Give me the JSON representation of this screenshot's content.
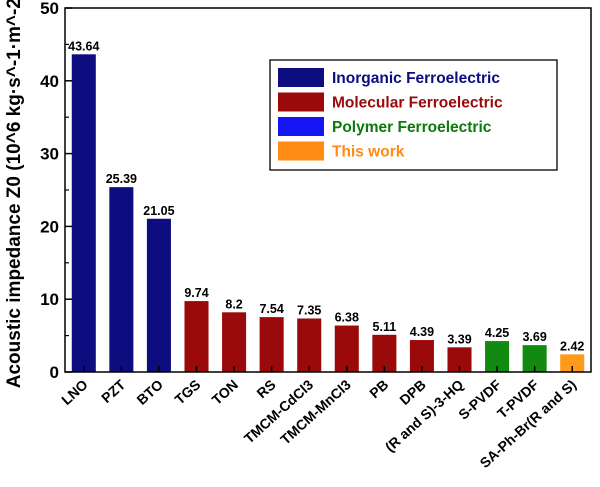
{
  "chart_data": {
    "type": "bar",
    "categories": [
      "LNO",
      "PZT",
      "BTO",
      "TGS",
      "TON",
      "RS",
      "TMCM-CdCl3",
      "TMCM-MnCl3",
      "PB",
      "DPB",
      "(R and S)-3-HQ",
      "S-PVDF",
      "T-PVDF",
      "SA-Ph-Br(R and S)"
    ],
    "values": [
      43.64,
      25.39,
      21.05,
      9.74,
      8.2,
      7.54,
      7.35,
      6.38,
      5.11,
      4.39,
      3.39,
      4.25,
      3.69,
      2.42
    ],
    "value_labels": [
      "43.64",
      "25.39",
      "21.05",
      "9.74",
      "8.2",
      "7.54",
      "7.35",
      "6.38",
      "5.11",
      "4.39",
      "3.39",
      "4.25",
      "3.69",
      "2.42"
    ],
    "groups": [
      "Inorganic Ferroelectric",
      "Inorganic Ferroelectric",
      "Inorganic Ferroelectric",
      "Molecular Ferroelectric",
      "Molecular Ferroelectric",
      "Molecular Ferroelectric",
      "Molecular Ferroelectric",
      "Molecular Ferroelectric",
      "Molecular Ferroelectric",
      "Molecular Ferroelectric",
      "Molecular Ferroelectric",
      "Polymer Ferroelectric",
      "Polymer Ferroelectric",
      "This work"
    ],
    "ylabel": "Acoustic impedance Z0 (10^6 kg·s^-1·m^-2)",
    "ylim": [
      0,
      50
    ],
    "yticks": [
      0,
      10,
      20,
      30,
      40,
      50
    ],
    "grid": false,
    "legend": {
      "placement": "top-right",
      "entries": [
        {
          "name": "Inorganic Ferroelectric",
          "swatch": "#0d0d80",
          "text_color": "#0d0d80"
        },
        {
          "name": "Molecular Ferroelectric",
          "swatch": "#9a0a0a",
          "text_color": "#9a0a0a"
        },
        {
          "name": "Polymer Ferroelectric",
          "swatch": "#1414f5",
          "text_color": "#0a7a0a"
        },
        {
          "name": "This work",
          "swatch": "#ff8a14",
          "text_color": "#ff8a14"
        }
      ]
    },
    "colors": {
      "Inorganic Ferroelectric": "#0d0d80",
      "Molecular Ferroelectric": "#9a0a0a",
      "Polymer Ferroelectric": "#128a12",
      "This work": "#ff9a1a"
    }
  }
}
